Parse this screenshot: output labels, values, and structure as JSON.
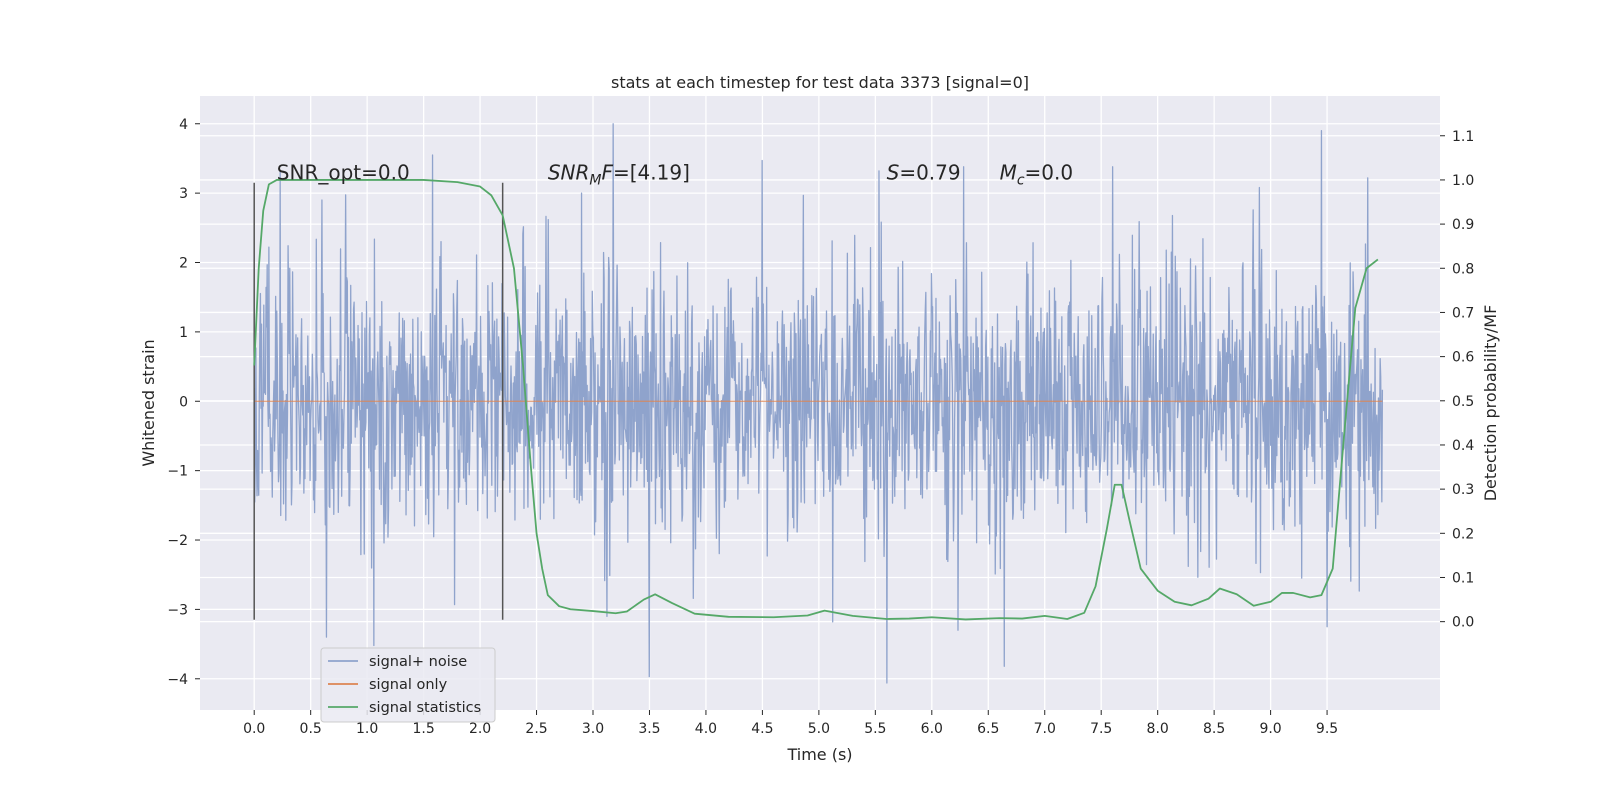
{
  "chart_data": {
    "type": "line",
    "title": "stats at each timestep for test data 3373 [signal=0]",
    "xlabel": "Time (s)",
    "ylabel": "Whitened strain",
    "y2label": "Detection probability/MF",
    "xlim": [
      -0.48,
      10.5
    ],
    "ylim": [
      -4.45,
      4.4
    ],
    "y2lim": [
      -0.2,
      1.19
    ],
    "x_ticks": [
      0.0,
      0.5,
      1.0,
      1.5,
      2.0,
      2.5,
      3.0,
      3.5,
      4.0,
      4.5,
      5.0,
      5.5,
      6.0,
      6.5,
      7.0,
      7.5,
      8.0,
      8.5,
      9.0,
      9.5
    ],
    "x_tick_labels": [
      "0.0",
      "0.5",
      "1.0",
      "1.5",
      "2.0",
      "2.5",
      "3.0",
      "3.5",
      "4.0",
      "4.5",
      "5.0",
      "5.5",
      "6.0",
      "6.5",
      "7.0",
      "7.5",
      "8.0",
      "8.5",
      "9.0",
      "9.5"
    ],
    "y_ticks": [
      4,
      3,
      2,
      1,
      0,
      -1,
      -2,
      -3,
      -4
    ],
    "y_tick_labels": [
      "4",
      "3",
      "2",
      "1",
      "0",
      "−1",
      "−2",
      "−3",
      "−4"
    ],
    "y2_ticks": [
      1.1,
      1.0,
      0.9,
      0.8,
      0.7,
      0.6,
      0.5,
      0.4,
      0.3,
      0.2,
      0.1,
      0.0
    ],
    "y2_tick_labels": [
      "1.1",
      "1.0",
      "0.9",
      "0.8",
      "0.7",
      "0.6",
      "0.5",
      "0.4",
      "0.3",
      "0.2",
      "0.1",
      "0.0"
    ],
    "grid": true,
    "legend_position": "lower-left",
    "vlines": [
      0.0,
      2.2
    ],
    "vline_ylim": [
      -3.15,
      3.15
    ],
    "annotations": [
      {
        "text": "SNR_opt=0.0",
        "x": 0.2,
        "y": 3.2
      },
      {
        "text": "SNR_MF=[4.19]",
        "x": 2.6,
        "y": 3.2,
        "math": true,
        "base": "SNR",
        "sub": "M",
        "suffix": "F=[4.19]"
      },
      {
        "text": "S=0.79",
        "x": 5.6,
        "y": 3.2,
        "math": true,
        "base": "S",
        "sub": "",
        "suffix": "=0.79"
      },
      {
        "text": "M_c=0.0",
        "x": 6.6,
        "y": 3.2,
        "math": true,
        "base": "M",
        "sub": "c",
        "suffix": "=0.0"
      }
    ],
    "noise_series": {
      "name": "signal+ noise",
      "color": "#8fa3cc",
      "x_range": [
        0.0,
        9.99
      ],
      "sample_count": 2000,
      "std": 1.0,
      "upper_peaks": [
        [
          0.23,
          3.3
        ],
        [
          0.6,
          2.9
        ],
        [
          1.06,
          3.27
        ],
        [
          1.58,
          3.55
        ],
        [
          2.9,
          3.0
        ],
        [
          3.18,
          4.0
        ],
        [
          4.5,
          3.47
        ],
        [
          5.53,
          3.32
        ],
        [
          6.28,
          3.38
        ],
        [
          7.6,
          3.38
        ],
        [
          8.9,
          3.08
        ],
        [
          9.45,
          3.9
        ],
        [
          9.86,
          3.22
        ]
      ],
      "lower_peaks": [
        [
          0.64,
          -3.4
        ],
        [
          1.06,
          -3.52
        ],
        [
          3.5,
          -3.97
        ],
        [
          5.12,
          -3.18
        ],
        [
          5.6,
          -4.06
        ],
        [
          6.23,
          -3.3
        ],
        [
          6.64,
          -3.82
        ],
        [
          9.5,
          -3.25
        ]
      ]
    },
    "signal_series": {
      "name": "signal only",
      "color": "#dd8452",
      "x": [
        0.0,
        9.99
      ],
      "y": [
        0.0,
        0.0
      ]
    },
    "stat_series": {
      "name": "signal statistics",
      "color": "#55a868",
      "axis": "right",
      "x": [
        0.0,
        0.04,
        0.08,
        0.13,
        0.2,
        0.3,
        0.5,
        1.0,
        1.5,
        1.8,
        2.0,
        2.1,
        2.2,
        2.3,
        2.38,
        2.45,
        2.5,
        2.55,
        2.6,
        2.7,
        2.8,
        3.0,
        3.2,
        3.3,
        3.45,
        3.55,
        3.7,
        3.9,
        4.2,
        4.6,
        4.9,
        5.05,
        5.3,
        5.6,
        5.8,
        6.0,
        6.3,
        6.6,
        6.8,
        7.0,
        7.2,
        7.35,
        7.45,
        7.55,
        7.62,
        7.68,
        7.75,
        7.85,
        8.0,
        8.15,
        8.3,
        8.45,
        8.55,
        8.7,
        8.85,
        9.0,
        9.1,
        9.2,
        9.35,
        9.45,
        9.55,
        9.65,
        9.75,
        9.85,
        9.95
      ],
      "y": [
        0.58,
        0.8,
        0.93,
        0.99,
        1.0,
        1.0,
        1.0,
        1.0,
        1.0,
        0.995,
        0.985,
        0.965,
        0.92,
        0.8,
        0.58,
        0.35,
        0.2,
        0.12,
        0.06,
        0.035,
        0.028,
        0.024,
        0.019,
        0.023,
        0.05,
        0.062,
        0.042,
        0.018,
        0.011,
        0.01,
        0.014,
        0.025,
        0.013,
        0.006,
        0.007,
        0.01,
        0.005,
        0.008,
        0.007,
        0.013,
        0.006,
        0.02,
        0.08,
        0.21,
        0.31,
        0.31,
        0.23,
        0.12,
        0.07,
        0.045,
        0.037,
        0.052,
        0.075,
        0.062,
        0.036,
        0.045,
        0.065,
        0.065,
        0.055,
        0.06,
        0.12,
        0.42,
        0.71,
        0.8,
        0.82
      ]
    }
  }
}
